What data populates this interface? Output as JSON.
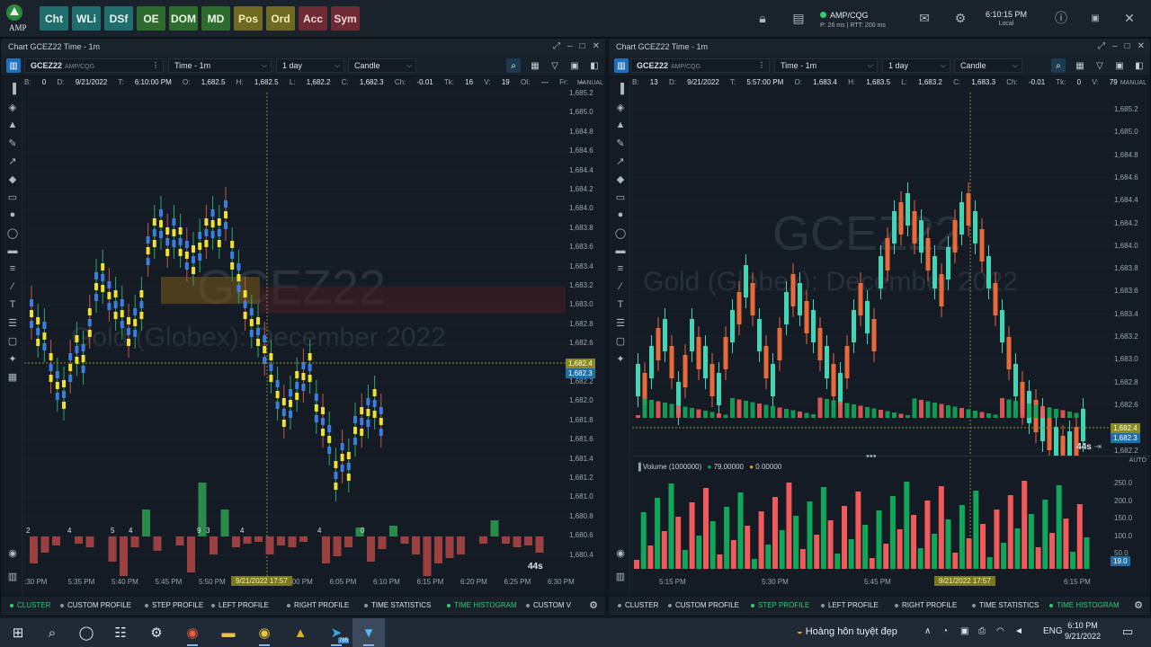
{
  "topbar": {
    "logo_text": "AMP",
    "buttons": [
      {
        "label": "Cht",
        "style": "teal"
      },
      {
        "label": "WLi",
        "style": "teal"
      },
      {
        "label": "DSf",
        "style": "teal"
      },
      {
        "label": "OE",
        "style": "green"
      },
      {
        "label": "DOM",
        "style": "green"
      },
      {
        "label": "MD",
        "style": "green"
      },
      {
        "label": "Pos",
        "style": "olive"
      },
      {
        "label": "Ord",
        "style": "olive"
      },
      {
        "label": "Acc",
        "style": "maroon"
      },
      {
        "label": "Sym",
        "style": "maroon"
      }
    ],
    "connection_name": "AMP/CQG",
    "connection_status": "P: 26 ms | RTT: 200 ms",
    "clock_time": "6:10:15 PM",
    "clock_label": "Local"
  },
  "left_panel": {
    "title": "Chart GCEZ22 Time - 1m",
    "symbol": "GCEZ22",
    "symbol_sub": "AMP/CQG",
    "timeframe": "Time - 1m",
    "range": "1 day",
    "chart_type": "Candle",
    "info": {
      "b_label": "B:",
      "b": "0",
      "d_label": "D:",
      "d": "9/21/2022",
      "t_label": "T:",
      "t": "6:10:00 PM",
      "o_label": "O:",
      "o": "1,682.5",
      "h_label": "H:",
      "h": "1,682.5",
      "l_label": "L:",
      "l": "1,682.2",
      "c_label": "C:",
      "c": "1,682.3",
      "ch_label": "Ch:",
      "ch": "-0.01",
      "tk_label": "Tk:",
      "tk": "16",
      "v_label": "V:",
      "v": "19",
      "oi_label": "OI:",
      "oi": "---",
      "fr_label": "Fr:",
      "fr": "--"
    },
    "axis_mode": "MANUAL",
    "watermark_symbol": "GCEZ22",
    "watermark_name": "Gold (Globex): December 2022",
    "y_ticks": [
      "1,685.2",
      "1,685.0",
      "1,684.8",
      "1,684.6",
      "1,684.4",
      "1,684.2",
      "1,684.0",
      "1,683.8",
      "1,683.6",
      "1,683.4",
      "1,683.2",
      "1,683.0",
      "1,682.8",
      "1,682.6",
      "1,682.4",
      "1,682.2",
      "1,682.0",
      "1,681.8",
      "1,681.6",
      "1,681.4",
      "1,681.2",
      "1,681.0",
      "1,680.8",
      "1,680.6",
      "1,680.4"
    ],
    "last_price": "1,682.4",
    "bid_price": "1,682.3",
    "countdown": "44s",
    "time_ticks": [
      ":30 PM",
      "5:35 PM",
      "5:40 PM",
      "5:45 PM",
      "5:50 PM",
      "5:55 PM",
      "6:00 PM",
      "6:05 PM",
      "6:10 PM",
      "6:15 PM",
      "6:20 PM",
      "6:25 PM",
      "6:30 PM"
    ],
    "cursor_time": "9/21/2022 17:57",
    "delta_labels": [
      "2",
      "4",
      "5",
      "4",
      "9",
      "3",
      "4",
      "4",
      "0"
    ],
    "bottom_tabs": [
      {
        "label": "CLUSTER",
        "on": true
      },
      {
        "label": "CUSTOM PROFILE",
        "on": false
      },
      {
        "label": "STEP PROFILE",
        "on": false
      },
      {
        "label": "LEFT PROFILE",
        "on": false
      },
      {
        "label": "RIGHT PROFILE",
        "on": false
      },
      {
        "label": "TIME STATISTICS",
        "on": false
      },
      {
        "label": "TIME HISTOGRAM",
        "on": true
      },
      {
        "label": "CUSTOM V",
        "on": false
      }
    ]
  },
  "right_panel": {
    "title": "Chart GCEZ22 Time - 1m",
    "symbol": "GCEZ22",
    "symbol_sub": "AMP/CQG",
    "timeframe": "Time - 1m",
    "range": "1 day",
    "chart_type": "Candle",
    "info": {
      "b_label": "B:",
      "b": "13",
      "d_label": "D:",
      "d": "9/21/2022",
      "t_label": "T:",
      "t": "5:57:00 PM",
      "o_label": "O:",
      "o": "1,683.4",
      "h_label": "H:",
      "h": "1,683.5",
      "l_label": "L:",
      "l": "1,683.2",
      "c_label": "C:",
      "c": "1,683.3",
      "ch_label": "Ch:",
      "ch": "-0.01",
      "tk_label": "Tk:",
      "tk": "0",
      "v_label": "V:",
      "v": "79"
    },
    "axis_mode": "MANUAL",
    "axis_mode2": "AUTO",
    "watermark_symbol": "GCEZ22",
    "watermark_name": "Gold (Globex): December 2022",
    "y_ticks": [
      "1,685.2",
      "1,685.0",
      "1,684.8",
      "1,684.6",
      "1,684.4",
      "1,684.2",
      "1,684.0",
      "1,683.8",
      "1,683.6",
      "1,683.4",
      "1,683.2",
      "1,683.0",
      "1,682.8",
      "1,682.6",
      "1,682.4",
      "1,682.2"
    ],
    "last_price": "1,682.4",
    "bid_price": "1,682.3",
    "countdown": "44s",
    "volume_title": "Volume (1000000)",
    "volume_v1": "79.00000",
    "volume_v2": "0.00000",
    "vol_ticks": [
      "250.0",
      "200.0",
      "150.0",
      "100.0",
      "50.0"
    ],
    "vol_last": "19.0",
    "time_ticks": [
      "5:15 PM",
      "5:30 PM",
      "5:45 PM",
      "6:15 PM"
    ],
    "cursor_time": "9/21/2022 17:57",
    "bottom_tabs": [
      {
        "label": "CLUSTER",
        "on": false
      },
      {
        "label": "CUSTOM PROFILE",
        "on": false
      },
      {
        "label": "STEP PROFILE",
        "on": true
      },
      {
        "label": "LEFT PROFILE",
        "on": false
      },
      {
        "label": "RIGHT PROFILE",
        "on": false
      },
      {
        "label": "TIME STATISTICS",
        "on": false
      },
      {
        "label": "TIME HISTOGRAM",
        "on": true
      }
    ]
  },
  "taskbar": {
    "weather": "Hoàng hôn tuyệt đẹp",
    "lang": "ENG",
    "time": "6:10 PM",
    "date": "9/21/2022",
    "telegram_badge": "785"
  },
  "colors": {
    "up": "#3ed6b4",
    "down": "#e8693a",
    "vol_up": "#0fa85a",
    "vol_down": "#f05a5a",
    "tag_last": "#8a8a1c",
    "tag_bid": "#1d6fa5"
  }
}
